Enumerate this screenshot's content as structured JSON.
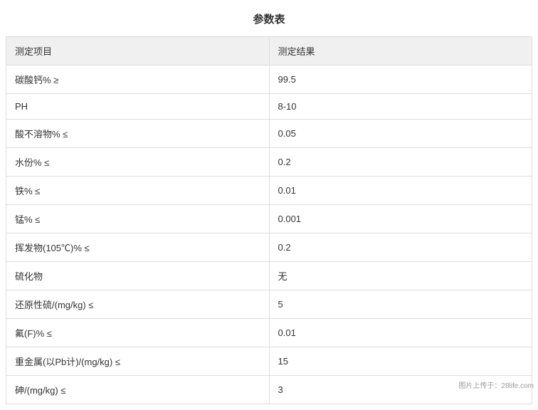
{
  "title": "参数表",
  "table": {
    "columns": [
      "测定项目",
      "测定结果"
    ],
    "rows": [
      {
        "param": "碳酸钙% ≥",
        "result": "99.5"
      },
      {
        "param": "PH",
        "result": "8-10"
      },
      {
        "param": "酸不溶物% ≤",
        "result": "0.05"
      },
      {
        "param": "水份% ≤",
        "result": "0.2"
      },
      {
        "param": "铁% ≤",
        "result": "0.01"
      },
      {
        "param": "锰% ≤",
        "result": "0.001"
      },
      {
        "param": "挥发物(105℃)% ≤",
        "result": "0.2"
      },
      {
        "param": "硫化物",
        "result": "无"
      },
      {
        "param": "还原性硫/(mg/kg) ≤",
        "result": "5"
      },
      {
        "param": "氟(F)% ≤",
        "result": "0.01"
      },
      {
        "param": "重金属(以Pb计)/(mg/kg) ≤",
        "result": "15"
      },
      {
        "param": "砷/(mg/kg) ≤",
        "result": "3"
      }
    ],
    "header_bg": "#f0f0f0",
    "border_color": "#dddddd",
    "text_color": "#333333",
    "font_size": 13
  },
  "watermark": "图片上传于：28life.com"
}
